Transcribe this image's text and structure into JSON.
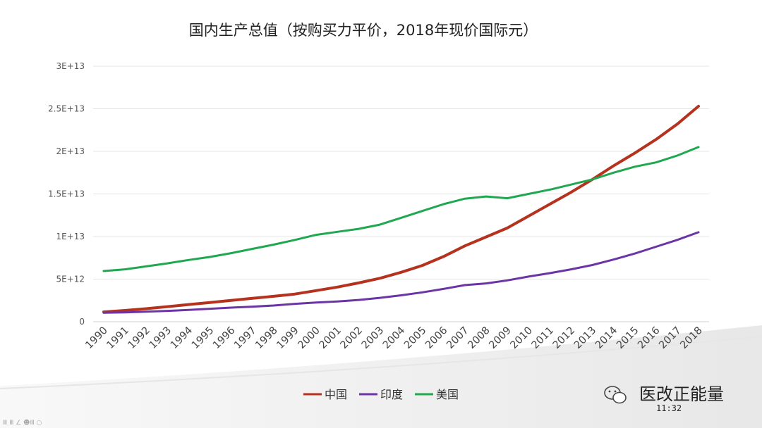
{
  "chart_data": {
    "type": "line",
    "title": "国内生产总值（按购买力平价，2018年现价国际元）",
    "categories": [
      "1990",
      "1991",
      "1992",
      "1993",
      "1994",
      "1995",
      "1996",
      "1997",
      "1998",
      "1999",
      "2000",
      "2001",
      "2002",
      "2003",
      "2004",
      "2005",
      "2006",
      "2007",
      "2008",
      "2009",
      "2010",
      "2011",
      "2012",
      "2013",
      "2014",
      "2015",
      "2016",
      "2017",
      "2018"
    ],
    "y_ticks": [
      {
        "value": 0,
        "label": "0"
      },
      {
        "value": 5000000000000.0,
        "label": "5E+12"
      },
      {
        "value": 10000000000000.0,
        "label": "1E+13"
      },
      {
        "value": 15000000000000.0,
        "label": "1.5E+13"
      },
      {
        "value": 20000000000000.0,
        "label": "2E+13"
      },
      {
        "value": 25000000000000.0,
        "label": "2.5E+13"
      },
      {
        "value": 30000000000000.0,
        "label": "3E+13"
      }
    ],
    "ylim": [
      0,
      30000000000000.0
    ],
    "grid": true,
    "legend_position": "bottom",
    "series": [
      {
        "name": "中国",
        "color": "#b5321f",
        "values": [
          1150000000000.0,
          1320000000000.0,
          1530000000000.0,
          1770000000000.0,
          2020000000000.0,
          2250000000000.0,
          2500000000000.0,
          2750000000000.0,
          2980000000000.0,
          3250000000000.0,
          3650000000000.0,
          4070000000000.0,
          4550000000000.0,
          5100000000000.0,
          5800000000000.0,
          6600000000000.0,
          7650000000000.0,
          8900000000000.0,
          9950000000000.0,
          11000000000000.0,
          12400000000000.0,
          13800000000000.0,
          15200000000000.0,
          16700000000000.0,
          18300000000000.0,
          19800000000000.0,
          21400000000000.0,
          23200000000000.0,
          25300000000000.0
        ]
      },
      {
        "name": "印度",
        "color": "#6b35a5",
        "values": [
          1050000000000.0,
          1100000000000.0,
          1180000000000.0,
          1270000000000.0,
          1380000000000.0,
          1520000000000.0,
          1650000000000.0,
          1770000000000.0,
          1900000000000.0,
          2100000000000.0,
          2250000000000.0,
          2380000000000.0,
          2550000000000.0,
          2800000000000.0,
          3100000000000.0,
          3450000000000.0,
          3850000000000.0,
          4300000000000.0,
          4500000000000.0,
          4850000000000.0,
          5300000000000.0,
          5700000000000.0,
          6150000000000.0,
          6650000000000.0,
          7300000000000.0,
          8000000000000.0,
          8800000000000.0,
          9600000000000.0,
          10500000000000.0
        ]
      },
      {
        "name": "美国",
        "color": "#1fa84f",
        "values": [
          5950000000000.0,
          6150000000000.0,
          6500000000000.0,
          6850000000000.0,
          7250000000000.0,
          7600000000000.0,
          8050000000000.0,
          8550000000000.0,
          9050000000000.0,
          9600000000000.0,
          10200000000000.0,
          10550000000000.0,
          10900000000000.0,
          11400000000000.0,
          12200000000000.0,
          13000000000000.0,
          13800000000000.0,
          14450000000000.0,
          14700000000000.0,
          14500000000000.0,
          15000000000000.0,
          15500000000000.0,
          16100000000000.0,
          16700000000000.0,
          17500000000000.0,
          18200000000000.0,
          18700000000000.0,
          19500000000000.0,
          20500000000000.0
        ]
      }
    ]
  },
  "watermark": {
    "text": "医改正能量",
    "time": "11:32",
    "footnote": "Ⅲ Ⅲ ∠ ☻Ⅲ ○"
  }
}
